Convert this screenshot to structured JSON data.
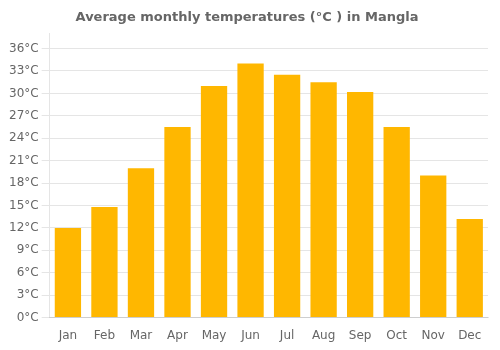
{
  "chart_data": {
    "type": "bar",
    "title": "Average monthly temperatures (°C ) in Mangla",
    "categories": [
      "Jan",
      "Feb",
      "Mar",
      "Apr",
      "May",
      "Jun",
      "Jul",
      "Aug",
      "Sep",
      "Oct",
      "Nov",
      "Dec"
    ],
    "values": [
      12,
      14.8,
      20,
      25.5,
      31,
      34,
      32.5,
      31.5,
      30.2,
      25.5,
      19,
      13.2
    ],
    "color": "#FFB700",
    "ylim": [
      0,
      38
    ],
    "yticks": [
      {
        "value": 0,
        "label": "0°C"
      },
      {
        "value": 3,
        "label": "3°C"
      },
      {
        "value": 6,
        "label": "6°C"
      },
      {
        "value": 9,
        "label": "9°C"
      },
      {
        "value": 12,
        "label": "12°C"
      },
      {
        "value": 15,
        "label": "15°C"
      },
      {
        "value": 18,
        "label": "18°C"
      },
      {
        "value": 21,
        "label": "21°C"
      },
      {
        "value": 24,
        "label": "24°C"
      },
      {
        "value": 27,
        "label": "27°C"
      },
      {
        "value": 30,
        "label": "30°C"
      },
      {
        "value": 33,
        "label": "33°C"
      },
      {
        "value": 36,
        "label": "36°C"
      }
    ],
    "grid": true
  }
}
